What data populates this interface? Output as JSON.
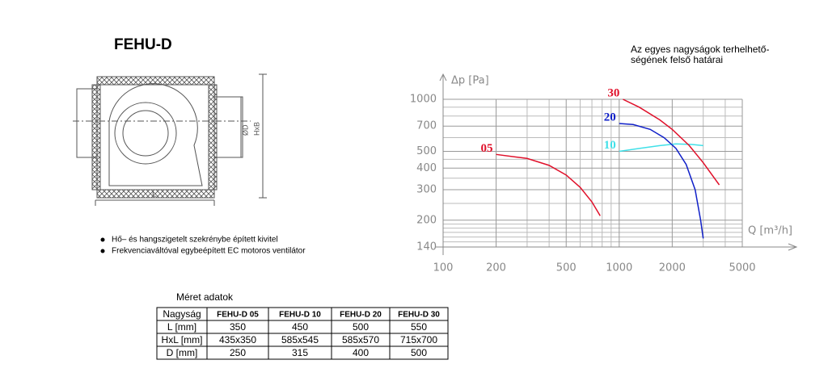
{
  "header": {
    "title": "FEHU-D"
  },
  "drawing": {
    "labels": [
      "ØD",
      "HxB",
      "L"
    ]
  },
  "bullets": [
    "Hő– és hangszigetelt szekrénybe épített kivitel",
    "Frekvenciaváltóval egybeépített EC motoros ventilátor"
  ],
  "table": {
    "caption": "Méret adatok",
    "header": [
      "Nagyság",
      "FEHU-D 05",
      "FEHU-D 10",
      "FEHU-D 20",
      "FEHU-D 30"
    ],
    "rows": [
      [
        "L [mm]",
        "350",
        "450",
        "500",
        "550"
      ],
      [
        "HxL [mm]",
        "435x350",
        "585x545",
        "585x570",
        "715x700"
      ],
      [
        "D [mm]",
        "250",
        "315",
        "400",
        "500"
      ]
    ]
  },
  "chart_data": {
    "type": "line",
    "title": [
      "Az egyes nagyságok terhelhető-",
      "ségének felső határai"
    ],
    "x_label": "Q [m³/h]",
    "y_label": "Δp [Pa]",
    "xscale": "log",
    "yscale": "log",
    "grid": true,
    "xlim": [
      100,
      5000
    ],
    "ylim": [
      140,
      1000
    ],
    "xticks": [
      100,
      200,
      500,
      1000,
      2000,
      5000
    ],
    "yticks": [
      140,
      200,
      300,
      400,
      500,
      700,
      1000
    ],
    "xminor": [
      300,
      400,
      600,
      700,
      800,
      900,
      3000,
      4000
    ],
    "yminor": [
      150,
      160,
      170,
      180,
      190,
      250,
      350,
      450,
      600,
      800,
      900
    ],
    "series": [
      {
        "name": "05",
        "color": "#e0102a",
        "x": [
          200,
          300,
          400,
          500,
          600,
          700,
          780
        ],
        "values": [
          480,
          455,
          415,
          365,
          310,
          255,
          212
        ]
      },
      {
        "name": "10",
        "color": "#40e0e8",
        "x": [
          1000,
          1300,
          1700,
          2100,
          2600,
          3000
        ],
        "values": [
          500,
          520,
          540,
          552,
          548,
          540
        ]
      },
      {
        "name": "20",
        "color": "#1020c8",
        "x": [
          1000,
          1200,
          1500,
          1800,
          2100,
          2400,
          2700,
          2900,
          3000
        ],
        "values": [
          724,
          715,
          670,
          600,
          520,
          420,
          300,
          200,
          157
        ]
      },
      {
        "name": "30",
        "color": "#e0102a",
        "x": [
          1050,
          1300,
          1700,
          2000,
          2500,
          3000,
          3700
        ],
        "values": [
          1000,
          900,
          760,
          670,
          540,
          430,
          320
        ]
      }
    ]
  }
}
